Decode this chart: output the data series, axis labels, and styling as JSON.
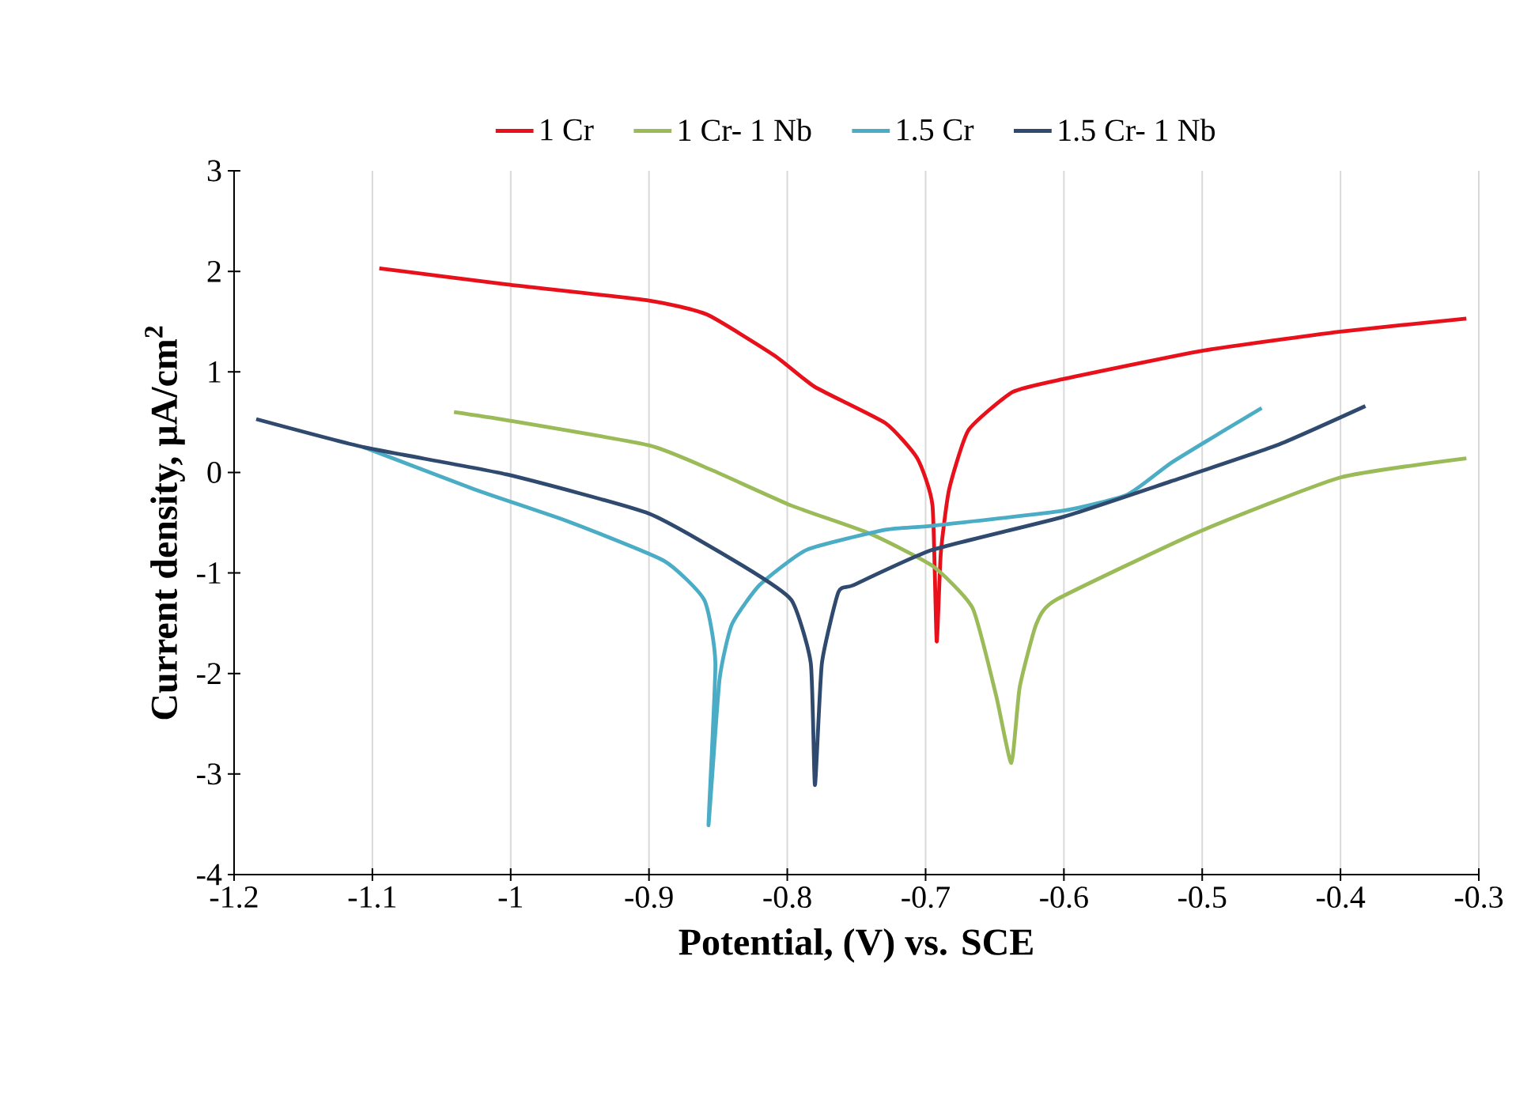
{
  "chart_data": {
    "type": "line",
    "xlabel": "Potential, (V) vs. SCE",
    "ylabel": "Current  density, μA/cm$^{2}$",
    "xlim": [
      -1.2,
      -0.3
    ],
    "xticks": [
      -1.2,
      -1.1,
      -1,
      -0.9,
      -0.8,
      -0.7,
      -0.6,
      -0.5,
      -0.4,
      -0.3
    ],
    "ylim": [
      -4,
      3
    ],
    "yticks": [
      -4,
      -3,
      -2,
      -1,
      0,
      1,
      2,
      3
    ],
    "grid": "x",
    "legend": "top",
    "marker": "none",
    "line_style": "solid",
    "series": [
      {
        "name": "1 Cr",
        "color": "#e8101a",
        "x": [
          -1.095,
          -1.003,
          -0.9,
          -0.858,
          -0.809,
          -0.78,
          -0.729,
          -0.706,
          -0.695,
          -0.692,
          -0.689,
          -0.683,
          -0.669,
          -0.637,
          -0.6,
          -0.5,
          -0.4,
          -0.309
        ],
        "values": [
          2.03,
          1.87,
          1.71,
          1.57,
          1.16,
          0.85,
          0.49,
          0.14,
          -0.33,
          -1.68,
          -0.8,
          -0.17,
          0.42,
          0.8,
          0.93,
          1.21,
          1.4,
          1.53
        ]
      },
      {
        "name": "1 Cr- 1 Nb",
        "color": "#9bbb59",
        "x": [
          -1.041,
          -1.003,
          -0.9,
          -0.854,
          -0.797,
          -0.74,
          -0.695,
          -0.666,
          -0.649,
          -0.638,
          -0.632,
          -0.62,
          -0.606,
          -0.504,
          -0.4,
          -0.309
        ],
        "values": [
          0.6,
          0.52,
          0.27,
          0.02,
          -0.33,
          -0.61,
          -0.93,
          -1.35,
          -2.22,
          -2.89,
          -2.14,
          -1.51,
          -1.27,
          -0.6,
          -0.05,
          0.14
        ]
      },
      {
        "name": "1.5 Cr",
        "color": "#4bacc6",
        "x": [
          -1.106,
          -1.026,
          -0.958,
          -0.889,
          -0.86,
          -0.852,
          -0.857,
          -0.849,
          -0.84,
          -0.82,
          -0.786,
          -0.729,
          -0.695,
          -0.6,
          -0.554,
          -0.523,
          -0.485,
          -0.457
        ],
        "values": [
          0.25,
          -0.17,
          -0.49,
          -0.88,
          -1.27,
          -1.9,
          -3.51,
          -2.06,
          -1.51,
          -1.12,
          -0.77,
          -0.57,
          -0.53,
          -0.38,
          -0.22,
          0.09,
          0.41,
          0.64
        ]
      },
      {
        "name": "1.5 Cr- 1 Nb",
        "color": "#2f4a6e",
        "x": [
          -1.184,
          -1.106,
          -1.003,
          -0.9,
          -0.832,
          -0.797,
          -0.783,
          -0.78,
          -0.775,
          -0.763,
          -0.752,
          -0.695,
          -0.6,
          -0.523,
          -0.446,
          -0.382
        ],
        "values": [
          0.53,
          0.25,
          -0.02,
          -0.41,
          -0.93,
          -1.27,
          -1.9,
          -3.11,
          -1.9,
          -1.19,
          -1.12,
          -0.77,
          -0.44,
          -0.09,
          0.27,
          0.66
        ]
      }
    ]
  }
}
